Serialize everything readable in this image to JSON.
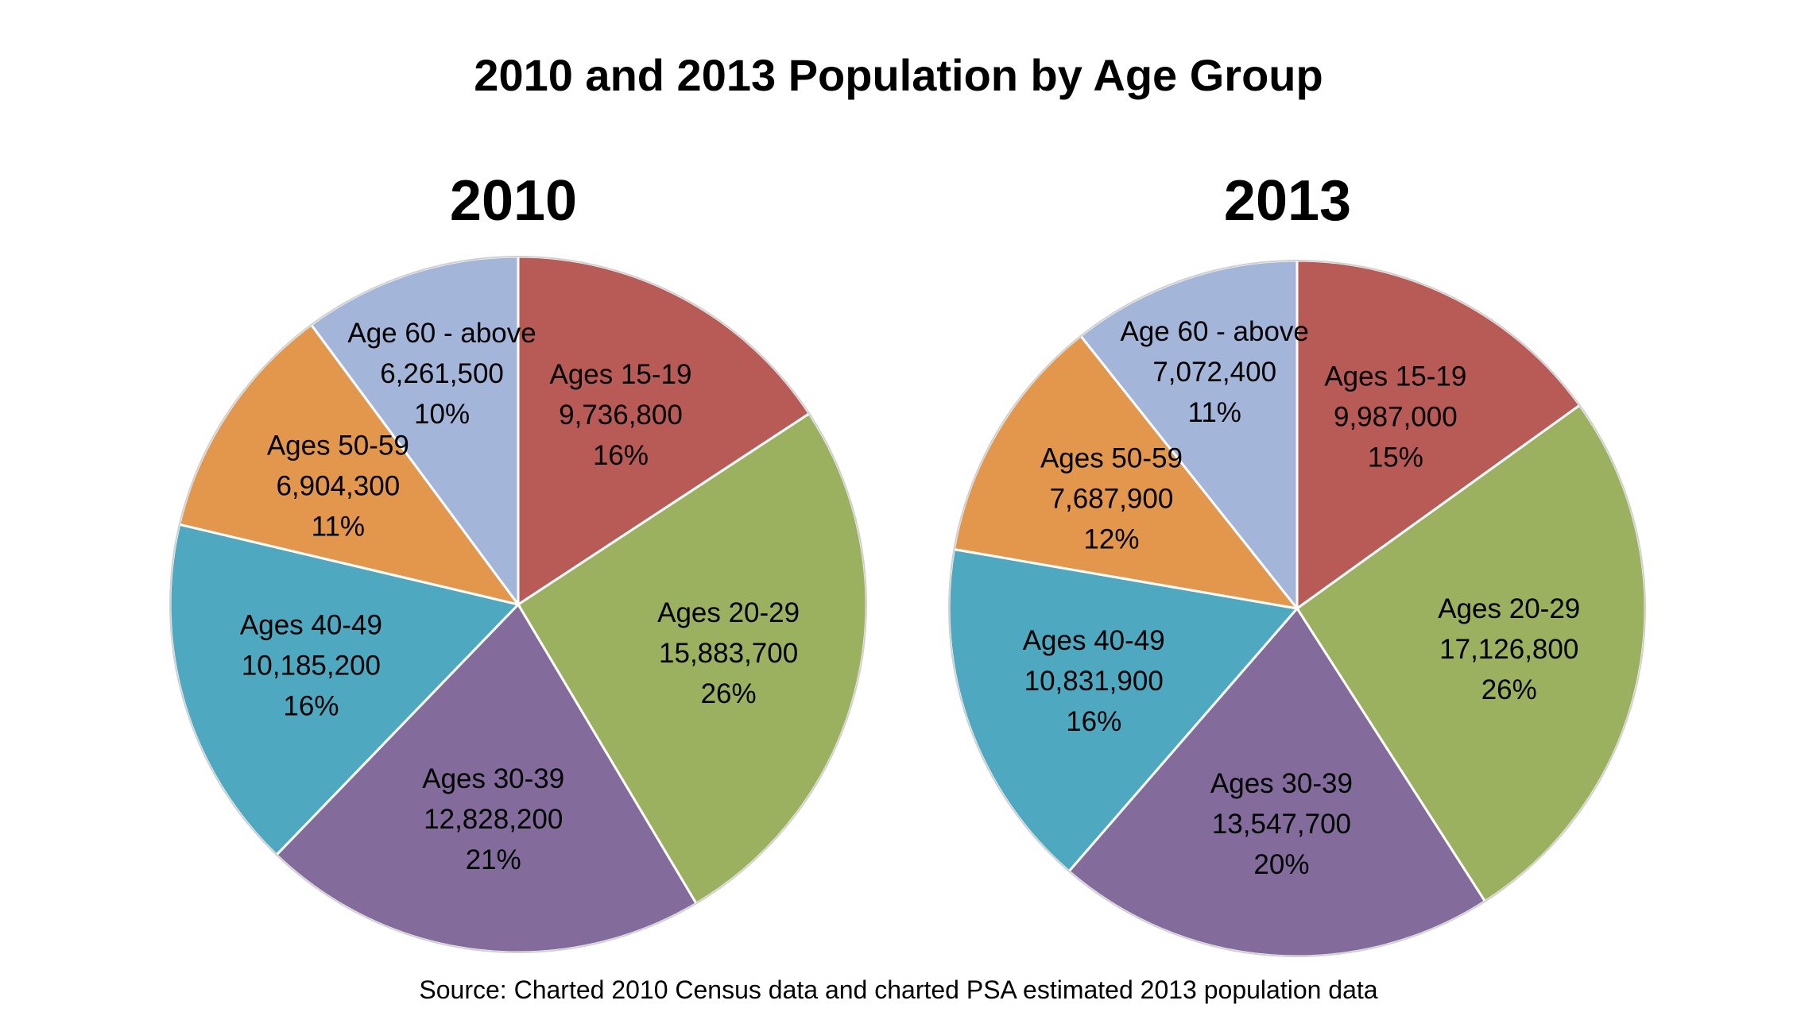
{
  "title": "2010 and 2013 Population by Age Group",
  "source": "Source: Charted 2010 Census data and charted PSA estimated 2013 population data",
  "chart_data": [
    {
      "type": "pie",
      "title": "2010",
      "slices": [
        {
          "label": "Ages 15-19",
          "value": 9736800,
          "value_text": "9,736,800",
          "percent": "16%",
          "color": "#b85a56"
        },
        {
          "label": "Ages 20-29",
          "value": 15883700,
          "value_text": "15,883,700",
          "percent": "26%",
          "color": "#9bb15f"
        },
        {
          "label": "Ages 30-39",
          "value": 12828200,
          "value_text": "12,828,200",
          "percent": "21%",
          "color": "#836c9c"
        },
        {
          "label": "Ages 40-49",
          "value": 10185200,
          "value_text": "10,185,200",
          "percent": "16%",
          "color": "#4ea8bf"
        },
        {
          "label": "Ages 50-59",
          "value": 6904300,
          "value_text": "6,904,300",
          "percent": "11%",
          "color": "#e2974d"
        },
        {
          "label": "Age 60 - above",
          "value": 6261500,
          "value_text": "6,261,500",
          "percent": "10%",
          "color": "#a3b6d9"
        }
      ]
    },
    {
      "type": "pie",
      "title": "2013",
      "slices": [
        {
          "label": "Ages 15-19",
          "value": 9987000,
          "value_text": "9,987,000",
          "percent": "15%",
          "color": "#b85a56"
        },
        {
          "label": "Ages 20-29",
          "value": 17126800,
          "value_text": "17,126,800",
          "percent": "26%",
          "color": "#9bb15f"
        },
        {
          "label": "Ages 30-39",
          "value": 13547700,
          "value_text": "13,547,700",
          "percent": "20%",
          "color": "#836c9c"
        },
        {
          "label": "Ages 40-49",
          "value": 10831900,
          "value_text": "10,831,900",
          "percent": "16%",
          "color": "#4ea8bf"
        },
        {
          "label": "Ages 50-59",
          "value": 7687900,
          "value_text": "7,687,900",
          "percent": "12%",
          "color": "#e2974d"
        },
        {
          "label": "Age 60 - above",
          "value": 7072400,
          "value_text": "7,072,400",
          "percent": "11%",
          "color": "#a3b6d9"
        }
      ]
    }
  ]
}
